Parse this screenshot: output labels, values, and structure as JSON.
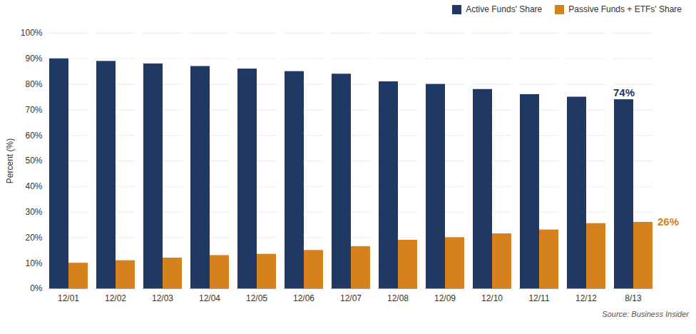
{
  "chart_data": {
    "type": "bar",
    "categories": [
      "12/01",
      "12/02",
      "12/03",
      "12/04",
      "12/05",
      "12/06",
      "12/07",
      "12/08",
      "12/09",
      "12/10",
      "12/11",
      "12/12",
      "8/13"
    ],
    "series": [
      {
        "name": "Active Funds' Share",
        "color": "#1f3864",
        "values": [
          90,
          89,
          88,
          87,
          86,
          85,
          84,
          81,
          80,
          78,
          76,
          75,
          74
        ]
      },
      {
        "name": "Passive Funds + ETFs' Share",
        "color": "#d4811e",
        "values": [
          10,
          11,
          12,
          13,
          13.5,
          15,
          16.5,
          19,
          20,
          21.5,
          23,
          25.5,
          26
        ]
      }
    ],
    "ylabel": "Percent (%)",
    "ylim": [
      0,
      100
    ],
    "yticks": [
      {
        "value": 0,
        "label": "0%"
      },
      {
        "value": 10,
        "label": "10%"
      },
      {
        "value": 20,
        "label": "20%"
      },
      {
        "value": 30,
        "label": "30%"
      },
      {
        "value": 40,
        "label": "40%"
      },
      {
        "value": 50,
        "label": "50%"
      },
      {
        "value": 60,
        "label": "60%"
      },
      {
        "value": 70,
        "label": "70%"
      },
      {
        "value": 80,
        "label": "80%"
      },
      {
        "value": 90,
        "label": "90%"
      },
      {
        "value": 100,
        "label": "100%"
      }
    ],
    "grid": true,
    "legend": "upper right",
    "annotations": [
      {
        "text": "74%",
        "series": "Active Funds' Share"
      },
      {
        "text": "26%",
        "series": "Passive Funds + ETFs' Share"
      }
    ],
    "source": "Source: Business Insider"
  }
}
